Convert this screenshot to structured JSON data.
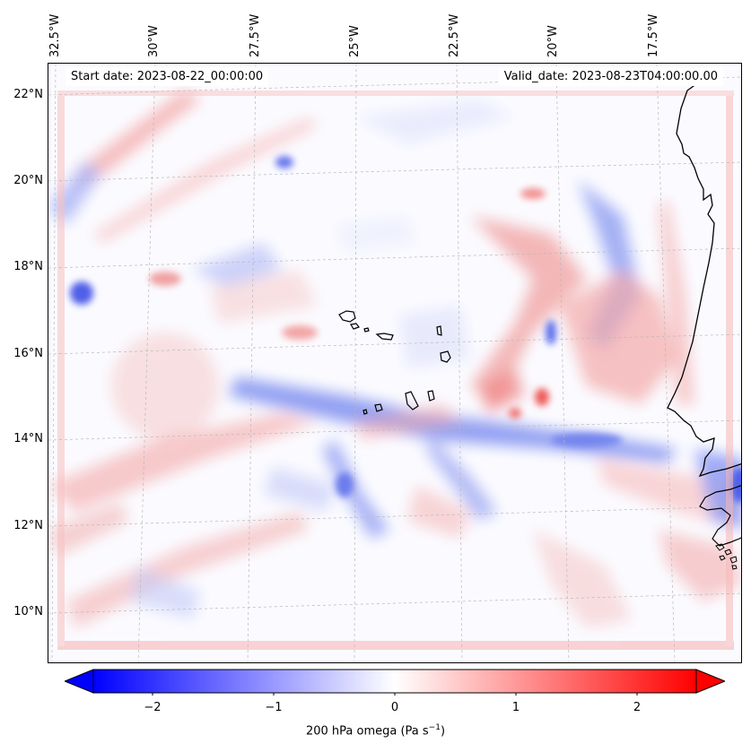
{
  "map": {
    "start_date": "Start date: 2023-08-22_00:00:00",
    "valid_date": "Valid_date: 2023-08-23T04:00:00.00",
    "longitude_labels": [
      "32.5°W",
      "30°W",
      "27.5°W",
      "25°W",
      "22.5°W",
      "20°W",
      "17.5°W"
    ],
    "latitude_labels": [
      "22°N",
      "20°N",
      "18°N",
      "16°N",
      "14°N",
      "12°N",
      "10°N"
    ],
    "field": "200 hPa omega",
    "regions_shown": [
      "Cape Verde Islands",
      "West African coast"
    ]
  },
  "colorbar": {
    "label_prefix": "200 hPa omega (Pa s",
    "label_sup": "−1",
    "label_suffix": ")",
    "ticks": [
      "−2",
      "−1",
      "0",
      "1",
      "2"
    ],
    "range": [
      -2.6,
      2.6
    ],
    "colormap": "bwr",
    "extend": "both"
  },
  "colors": {
    "negative": "#0000ff",
    "neutral": "#ffffff",
    "positive": "#ff0000",
    "coastline": "#000000",
    "gridline": "#b0b0b0"
  }
}
